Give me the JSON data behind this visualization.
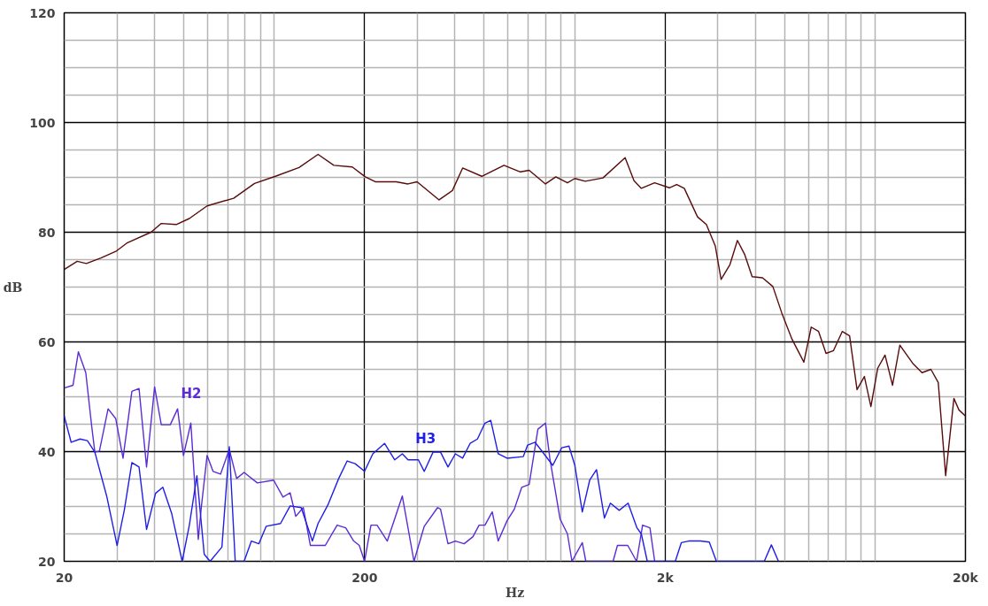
{
  "chart_data": {
    "type": "line",
    "xlabel": "Hz",
    "ylabel": "dB",
    "log": "x",
    "grid": true,
    "xlim": [
      20,
      20000
    ],
    "ylim": [
      20,
      120
    ],
    "xticks": [
      20,
      {
        "value": 30,
        "label": null
      },
      {
        "value": 40,
        "label": null
      },
      {
        "value": 50,
        "label": null
      },
      {
        "value": 60,
        "label": null
      },
      {
        "value": 70,
        "label": null
      },
      {
        "value": 80,
        "label": null
      },
      {
        "value": 90,
        "label": null
      },
      {
        "value": 100,
        "label": null
      },
      200,
      {
        "value": 300,
        "label": null
      },
      {
        "value": 400,
        "label": null
      },
      {
        "value": 500,
        "label": null
      },
      {
        "value": 600,
        "label": null
      },
      {
        "value": 700,
        "label": null
      },
      {
        "value": 800,
        "label": null
      },
      {
        "value": 900,
        "label": null
      },
      {
        "value": 1000,
        "label": null
      },
      {
        "value": 2000,
        "label": "2k"
      },
      {
        "value": 3000,
        "label": null
      },
      {
        "value": 4000,
        "label": null
      },
      {
        "value": 5000,
        "label": null
      },
      {
        "value": 6000,
        "label": null
      },
      {
        "value": 7000,
        "label": null
      },
      {
        "value": 8000,
        "label": null
      },
      {
        "value": 9000,
        "label": null
      },
      {
        "value": 10000,
        "label": null
      },
      {
        "value": 20000,
        "label": "20k"
      }
    ],
    "yticks": [
      20,
      {
        "value": 25,
        "label": null
      },
      {
        "value": 30,
        "label": null
      },
      {
        "value": 35,
        "label": null
      },
      40,
      {
        "value": 45,
        "label": null
      },
      {
        "value": 50,
        "label": null
      },
      {
        "value": 55,
        "label": null
      },
      60,
      {
        "value": 65,
        "label": null
      },
      {
        "value": 70,
        "label": null
      },
      {
        "value": 75,
        "label": null
      },
      80,
      {
        "value": 85,
        "label": null
      },
      {
        "value": 90,
        "label": null
      },
      {
        "value": 95,
        "label": null
      },
      100,
      {
        "value": 105,
        "label": null
      },
      {
        "value": 110,
        "label": null
      },
      {
        "value": 115,
        "label": null
      },
      120
    ],
    "series": [
      {
        "color": "#5a0c0c",
        "x": [
          20,
          22.1,
          23.7,
          26.5,
          29.7,
          32.5,
          38.9,
          42.1,
          47.2,
          52.2,
          59.8,
          73.3,
          86,
          101,
          121,
          140,
          158,
          182,
          201,
          217,
          255,
          279,
          299,
          354,
          392,
          424,
          491,
          582,
          660,
          706,
          800,
          866,
          947,
          1002,
          1085,
          1243,
          1473,
          1577,
          1668,
          1847,
          2068,
          2188,
          2318,
          2566,
          2746,
          2940,
          3074,
          3290,
          3484,
          3686,
          3900,
          4222,
          4571,
          4893,
          5294,
          5798,
          6134,
          6490,
          6871,
          7270,
          7780,
          8231,
          8714,
          9220,
          9690,
          10210,
          10800,
          11440,
          12100,
          13400,
          14340,
          15350,
          16240,
          17190,
          18310,
          19030,
          20000
        ],
        "values": [
          73.2,
          74.7,
          74.3,
          75.3,
          76.5,
          78.1,
          80,
          81.6,
          81.4,
          82.5,
          84.8,
          86.2,
          88.9,
          90.2,
          91.8,
          94.2,
          92.2,
          91.9,
          90.1,
          89.2,
          89.2,
          88.8,
          89.2,
          85.9,
          87.6,
          91.7,
          90.2,
          92.2,
          91,
          91.3,
          88.8,
          90.1,
          89,
          89.8,
          89.3,
          89.9,
          93.6,
          89.4,
          88,
          89,
          88.1,
          88.7,
          88,
          82.8,
          81.4,
          77.5,
          71.4,
          74.1,
          78.5,
          75.9,
          71.9,
          71.7,
          70.1,
          65.3,
          60.5,
          56.3,
          62.7,
          61.9,
          57.9,
          58.4,
          61.9,
          61.1,
          51.3,
          53.7,
          48.2,
          55.2,
          57.6,
          52.1,
          59.4,
          56,
          54.4,
          55,
          52.6,
          35.6,
          49.7,
          47.6,
          46.5
        ]
      },
      {
        "name": "H2",
        "color": "#5b2bd6",
        "x": [
          20,
          21.4,
          22.3,
          23.6,
          24.7,
          25.3,
          26.2,
          28,
          29.7,
          31.4,
          33.6,
          35.5,
          37.6,
          40,
          42.1,
          45.1,
          47.7,
          49.9,
          52.8,
          55.9,
          57.2,
          59.8,
          62.6,
          66.3,
          70.9,
          75,
          79.4,
          87.9,
          99.6,
          107,
          113,
          118,
          125,
          132,
          138,
          148,
          162,
          173,
          184,
          192,
          200,
          210,
          220,
          238,
          267,
          292,
          316,
          350,
          358,
          379,
          401,
          429,
          459,
          481,
          503,
          532,
          557,
          596,
          630,
          667,
          706,
          755,
          800,
          827,
          895,
          947,
          980,
          1061,
          1090,
          1343,
          1389,
          1503,
          1609,
          1684,
          1782,
          1848
        ],
        "values": [
          51.6,
          52.1,
          58.2,
          54.4,
          44.6,
          39.9,
          40.1,
          47.8,
          46,
          38.8,
          51,
          51.5,
          37.2,
          51.8,
          44.9,
          44.9,
          47.8,
          39.3,
          45.2,
          24,
          29.8,
          39.3,
          36.4,
          35.9,
          40.4,
          35.1,
          36.2,
          34.3,
          34.8,
          31.7,
          32.5,
          28.2,
          29.8,
          22.9,
          22.9,
          22.9,
          26.6,
          26.1,
          23.7,
          22.9,
          20,
          26.6,
          26.6,
          23.7,
          31.9,
          20,
          26.4,
          29.8,
          29.5,
          23.2,
          23.7,
          23.2,
          24.5,
          26.6,
          26.6,
          29,
          23.7,
          27.4,
          29.5,
          33.5,
          34,
          44.1,
          45.2,
          38.8,
          27.7,
          25,
          20,
          23.4,
          20,
          20,
          22.9,
          22.9,
          20,
          26.6,
          26.1,
          20
        ]
      },
      {
        "name": "H3",
        "color": "#1f1fe6",
        "x": [
          20,
          21.1,
          22.6,
          23.9,
          25.3,
          27.7,
          30,
          31.7,
          33.6,
          35.5,
          37.6,
          40.3,
          42.6,
          45.6,
          49.4,
          52.2,
          55.3,
          58.5,
          61.2,
          67,
          70.9,
          74.2,
          79.4,
          84,
          88.9,
          94.1,
          105,
          113,
          123,
          134,
          140,
          151,
          164,
          175,
          186,
          200,
          213,
          233,
          252,
          267,
          279,
          302,
          316,
          338,
          358,
          379,
          401,
          424,
          449,
          475,
          503,
          526,
          557,
          596,
          675,
          698,
          739,
          791,
          846,
          906,
          958,
          1002,
          1061,
          1123,
          1183,
          1257,
          1316,
          1408,
          1507,
          1613,
          1668,
          1746,
          2164,
          2266,
          2398,
          2625,
          2808,
          2966,
          4280,
          4520,
          4772
        ],
        "values": [
          46.5,
          41.7,
          42.3,
          42,
          39.9,
          31.9,
          22.9,
          29.3,
          38,
          37.2,
          25.8,
          32.4,
          33.5,
          28.7,
          20,
          26.6,
          35.6,
          21.3,
          20,
          22.6,
          40.9,
          20,
          20,
          23.7,
          23.2,
          26.4,
          26.9,
          30.1,
          29.8,
          23.7,
          26.9,
          30.3,
          35.1,
          38.3,
          37.8,
          36.4,
          39.6,
          41.5,
          38.5,
          39.6,
          38.5,
          38.5,
          36.4,
          39.9,
          39.9,
          37.2,
          39.6,
          38.8,
          41.5,
          42.3,
          45.2,
          45.7,
          39.6,
          38.8,
          39.1,
          41.2,
          41.7,
          39.6,
          37.5,
          40.7,
          41,
          37.5,
          29,
          34.8,
          36.7,
          27.9,
          30.6,
          29.3,
          30.6,
          26.1,
          25,
          20,
          20,
          23.4,
          23.7,
          23.7,
          23.5,
          20,
          20,
          23,
          20
        ]
      }
    ]
  }
}
